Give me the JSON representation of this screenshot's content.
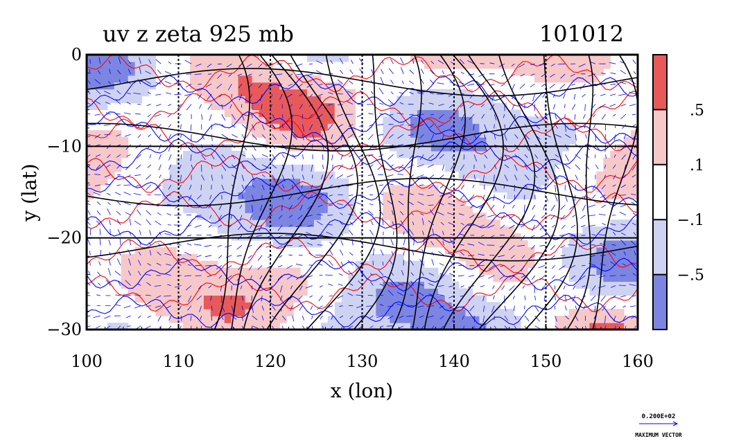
{
  "chart_data": {
    "type": "heatmap",
    "title": "uv z zeta 925 mb",
    "date_label": "101012",
    "xlabel": "x (lon)",
    "ylabel": "y (lat)",
    "xlim": [
      100,
      160
    ],
    "ylim": [
      -30,
      0
    ],
    "x_ticks": [
      "100",
      "110",
      "120",
      "130",
      "140",
      "150",
      "160"
    ],
    "y_ticks": [
      "0",
      "−10",
      "−20",
      "−30"
    ],
    "y_tick_values": [
      0,
      -10,
      -20,
      -30
    ],
    "x_tick_values": [
      100,
      110,
      120,
      130,
      140,
      150,
      160
    ],
    "grid": true,
    "colorbar": {
      "labels": [
        ".5",
        ".1",
        "−.1",
        "−.5"
      ],
      "bands": [
        {
          "color": "#e85a5a"
        },
        {
          "color": "#f7c8c8"
        },
        {
          "color": "#ffffff"
        },
        {
          "color": "#cfd3f2"
        },
        {
          "color": "#7c86e0"
        }
      ]
    },
    "vector_key": {
      "value": "0.200E+02",
      "label": "MAXIMUM VECTOR"
    },
    "colors": {
      "positive_contour": "#ff0000",
      "negative_contour": "#0000ff",
      "height_contour": "#000000",
      "vector": "#0000ff"
    }
  }
}
